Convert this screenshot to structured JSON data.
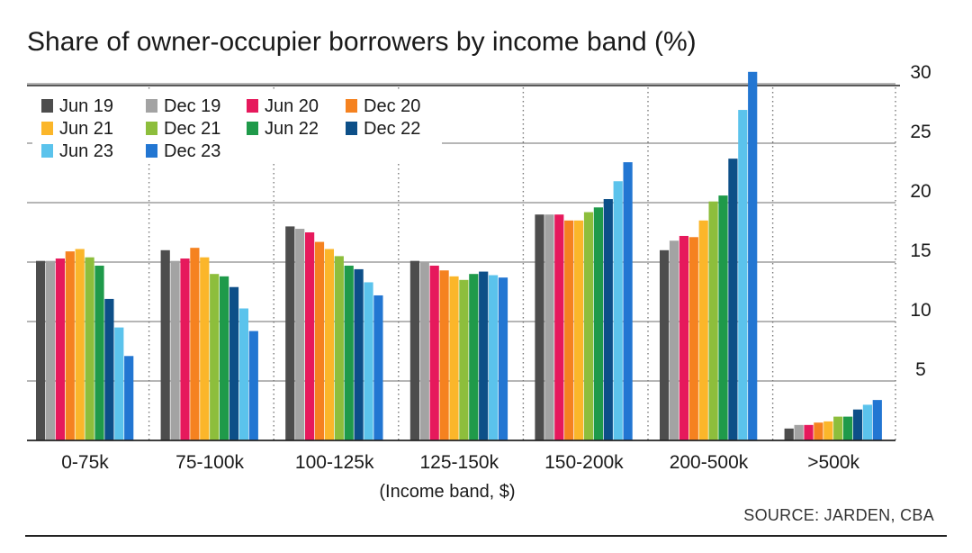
{
  "chart_data": {
    "type": "bar",
    "title": "Share of owner-occupier borrowers by income band (%)",
    "xlabel": "(Income band, $)",
    "ylabel": "",
    "ylim": [
      0,
      30
    ],
    "yticks": [
      5,
      10,
      15,
      20,
      25,
      30
    ],
    "y_axis_side": "right",
    "grid": true,
    "legend_position": "top-left",
    "categories": [
      "0-75k",
      "75-100k",
      "100-125k",
      "125-150k",
      "150-200k",
      "200-500k",
      ">500k"
    ],
    "series": [
      {
        "name": "Jun 19",
        "color": "#4d4d4d",
        "values": [
          15.1,
          16.0,
          18.0,
          15.1,
          19.0,
          16.0,
          1.0
        ]
      },
      {
        "name": "Dec 19",
        "color": "#a3a3a3",
        "values": [
          15.1,
          15.1,
          17.8,
          15.0,
          19.0,
          16.8,
          1.3
        ]
      },
      {
        "name": "Jun 20",
        "color": "#e6195c",
        "values": [
          15.3,
          15.3,
          17.5,
          14.7,
          19.0,
          17.2,
          1.3
        ]
      },
      {
        "name": "Dec 20",
        "color": "#f58220",
        "values": [
          15.9,
          16.2,
          16.7,
          14.3,
          18.5,
          17.1,
          1.5
        ]
      },
      {
        "name": "Jun 21",
        "color": "#fbb62a",
        "values": [
          16.1,
          15.4,
          16.1,
          13.8,
          18.5,
          18.5,
          1.6
        ]
      },
      {
        "name": "Dec 21",
        "color": "#8dbe3c",
        "values": [
          15.4,
          14.0,
          15.5,
          13.5,
          19.2,
          20.1,
          2.0
        ]
      },
      {
        "name": "Jun 22",
        "color": "#1f9a4a",
        "values": [
          14.7,
          13.8,
          14.7,
          14.0,
          19.6,
          20.6,
          2.0
        ]
      },
      {
        "name": "Dec 22",
        "color": "#0d4f88",
        "values": [
          11.9,
          12.9,
          14.4,
          14.2,
          20.3,
          23.7,
          2.6
        ]
      },
      {
        "name": "Jun 23",
        "color": "#5bc3ec",
        "values": [
          9.5,
          11.1,
          13.3,
          13.9,
          21.8,
          27.8,
          3.0
        ]
      },
      {
        "name": "Dec 23",
        "color": "#2276d2",
        "values": [
          7.1,
          9.2,
          12.2,
          13.7,
          23.4,
          31.0,
          3.4
        ]
      }
    ]
  },
  "source": "SOURCE: JARDEN, CBA"
}
